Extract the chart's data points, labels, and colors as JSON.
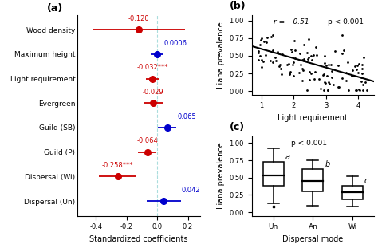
{
  "panel_a": {
    "labels": [
      "Wood density",
      "Maximum height",
      "Light requirement",
      "Evergreen",
      "Guild (SB)",
      "Guild (P)",
      "Dispersal (Wi)",
      "Dispersal (Un)"
    ],
    "coefs": [
      -0.12,
      0.0006,
      -0.032,
      -0.029,
      0.065,
      -0.064,
      -0.258,
      0.042
    ],
    "ci_low": [
      -0.42,
      -0.04,
      -0.075,
      -0.09,
      0.005,
      -0.125,
      -0.38,
      -0.07
    ],
    "ci_high": [
      0.18,
      0.04,
      0.01,
      0.035,
      0.125,
      -0.005,
      -0.135,
      0.155
    ],
    "colors": [
      "#cc0000",
      "#0000cc",
      "#cc0000",
      "#cc0000",
      "#0000cc",
      "#cc0000",
      "#cc0000",
      "#0000cc"
    ],
    "labels_text": [
      "-0.120",
      "0.0006",
      "-0.032",
      "-0.029",
      "0.065",
      "-0.064",
      "-0.258",
      "0.042"
    ],
    "sig_suffix": [
      "",
      "",
      "***",
      "",
      "",
      "",
      "***",
      ""
    ],
    "xlim": [
      -0.52,
      0.28
    ],
    "xticks": [
      -0.4,
      -0.2,
      0.0,
      0.2
    ],
    "xlabel": "Standardized coefficients",
    "vline": 0.0
  },
  "panel_b": {
    "r_text": "r = −0.51",
    "p_text": "p < 0.001",
    "xlabel": "Light requirement",
    "ylabel": "Liana prevalence",
    "xlim": [
      0.7,
      4.5
    ],
    "ylim": [
      -0.05,
      1.08
    ],
    "xticks": [
      1,
      2,
      3,
      4
    ],
    "yticks": [
      0.0,
      0.25,
      0.5,
      0.75,
      1.0
    ],
    "ytick_labels": [
      "0.00",
      "0.25",
      "0.50",
      "0.75",
      "1.00"
    ],
    "line_slope": -0.132,
    "line_intercept": 0.73
  },
  "panel_c": {
    "p_text": "p < 0.001",
    "xlabel": "Dispersal mode",
    "ylabel": "Liana prevalence",
    "categories": [
      "Un",
      "An",
      "Wi"
    ],
    "letters": [
      "a",
      "b",
      "c"
    ],
    "ylim": [
      -0.05,
      1.1
    ],
    "yticks": [
      0.0,
      0.25,
      0.5,
      0.75,
      1.0
    ],
    "ytick_labels": [
      "0.00",
      "0.25",
      "0.50",
      "0.75",
      "1.00"
    ],
    "un_stats": {
      "q1": 0.38,
      "median": 0.53,
      "q3": 0.73,
      "whisker_low": 0.13,
      "whisker_high": 0.92,
      "outliers": [
        0.08
      ]
    },
    "an_stats": {
      "q1": 0.3,
      "median": 0.45,
      "q3": 0.62,
      "whisker_low": 0.1,
      "whisker_high": 0.75,
      "outliers": []
    },
    "wi_stats": {
      "q1": 0.19,
      "median": 0.29,
      "q3": 0.38,
      "whisker_low": 0.08,
      "whisker_high": 0.52,
      "outliers": []
    }
  },
  "panel_label_fontsize": 9,
  "coef_fontsize": 6.0,
  "axis_label_fontsize": 7,
  "tick_fontsize": 6,
  "ylabel_fontsize": 7
}
